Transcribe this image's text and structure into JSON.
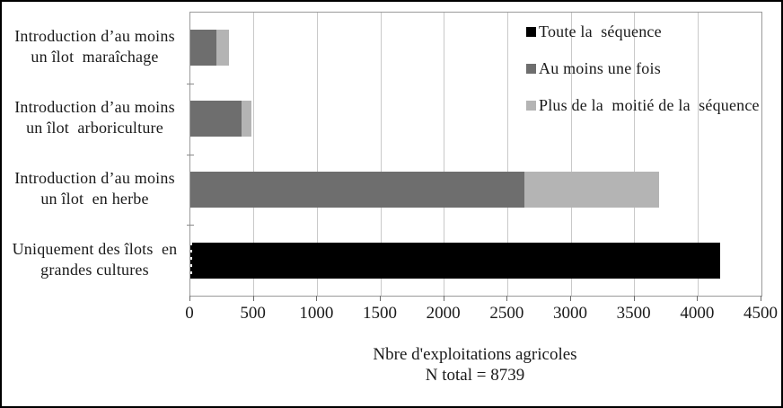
{
  "chart": {
    "xlabel_line1": "Nbre d'exploitations agricoles",
    "xlabel_line2": "N total = 8739"
  },
  "colors": {
    "series_black": "#000000",
    "series_dark_gray": "#6e6e6e",
    "series_light_gray": "#b4b4b4",
    "gridline": "#c9c9c9",
    "plot_border": "#9a9a9a",
    "figure_border": "#000000",
    "background": "#ffffff"
  },
  "chart_data": {
    "type": "bar",
    "orientation": "horizontal",
    "stacked": true,
    "title": "",
    "xlabel": "Nbre d'exploitations agricoles\nN total = 8739",
    "ylabel": "",
    "n_total": 8739,
    "xlim": [
      0,
      4500
    ],
    "xticks": [
      0,
      500,
      1000,
      1500,
      2000,
      2500,
      3000,
      3500,
      4000,
      4500
    ],
    "grid": "vertical",
    "legend_position": "top-right-inside",
    "categories": [
      "Introduction d’au moins un îlot maraîchage",
      "Introduction d’au moins un îlot arboriculture",
      "Introduction d’au moins un îlot en herbe",
      "Uniquement des îlots en grandes cultures"
    ],
    "category_label_lines": [
      [
        "Introduction d’au moins",
        "un îlot  maraîchage"
      ],
      [
        "Introduction d’au moins",
        "un îlot  arboriculture"
      ],
      [
        "Introduction d’au moins",
        "un îlot  en herbe"
      ],
      [
        "Uniquement des îlots  en",
        "grandes cultures"
      ]
    ],
    "series": [
      {
        "name": "Toute la  séquence",
        "color": "#000000",
        "values": [
          0,
          0,
          0,
          4175
        ]
      },
      {
        "name": "Au moins une fois",
        "color": "#6e6e6e",
        "values": [
          205,
          400,
          2630,
          0
        ]
      },
      {
        "name": "Plus de la  moitié de la  séquence",
        "color": "#b4b4b4",
        "values": [
          100,
          80,
          1060,
          0
        ]
      }
    ]
  }
}
